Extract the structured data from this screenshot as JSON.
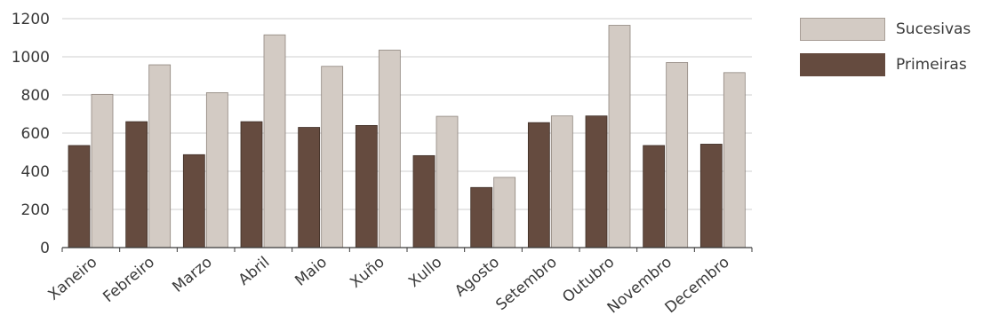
{
  "chart_data": {
    "type": "bar",
    "title": "",
    "xlabel": "",
    "ylabel": "",
    "ylim": [
      0,
      1200
    ],
    "yticks": [
      0,
      200,
      400,
      600,
      800,
      1000,
      1200
    ],
    "grid": true,
    "legend_placement": "top-right",
    "categories": [
      "Xaneiro",
      "Febreiro",
      "Marzo",
      "Abril",
      "Maio",
      "Xuño",
      "Xullo",
      "Agosto",
      "Setembro",
      "Outubro",
      "Novembro",
      "Decembro"
    ],
    "series": [
      {
        "name": "Primeiras",
        "color": "#654b3f",
        "values": [
          535,
          660,
          487,
          660,
          630,
          640,
          482,
          315,
          655,
          690,
          535,
          542
        ]
      },
      {
        "name": "Sucesivas",
        "color": "#d3cbc4",
        "values": [
          803,
          958,
          812,
          1115,
          950,
          1035,
          688,
          368,
          690,
          1165,
          970,
          917
        ]
      }
    ]
  },
  "legend": {
    "items": [
      {
        "label": "Sucesivas",
        "color": "#d3cbc4"
      },
      {
        "label": "Primeiras",
        "color": "#654b3f"
      }
    ]
  }
}
